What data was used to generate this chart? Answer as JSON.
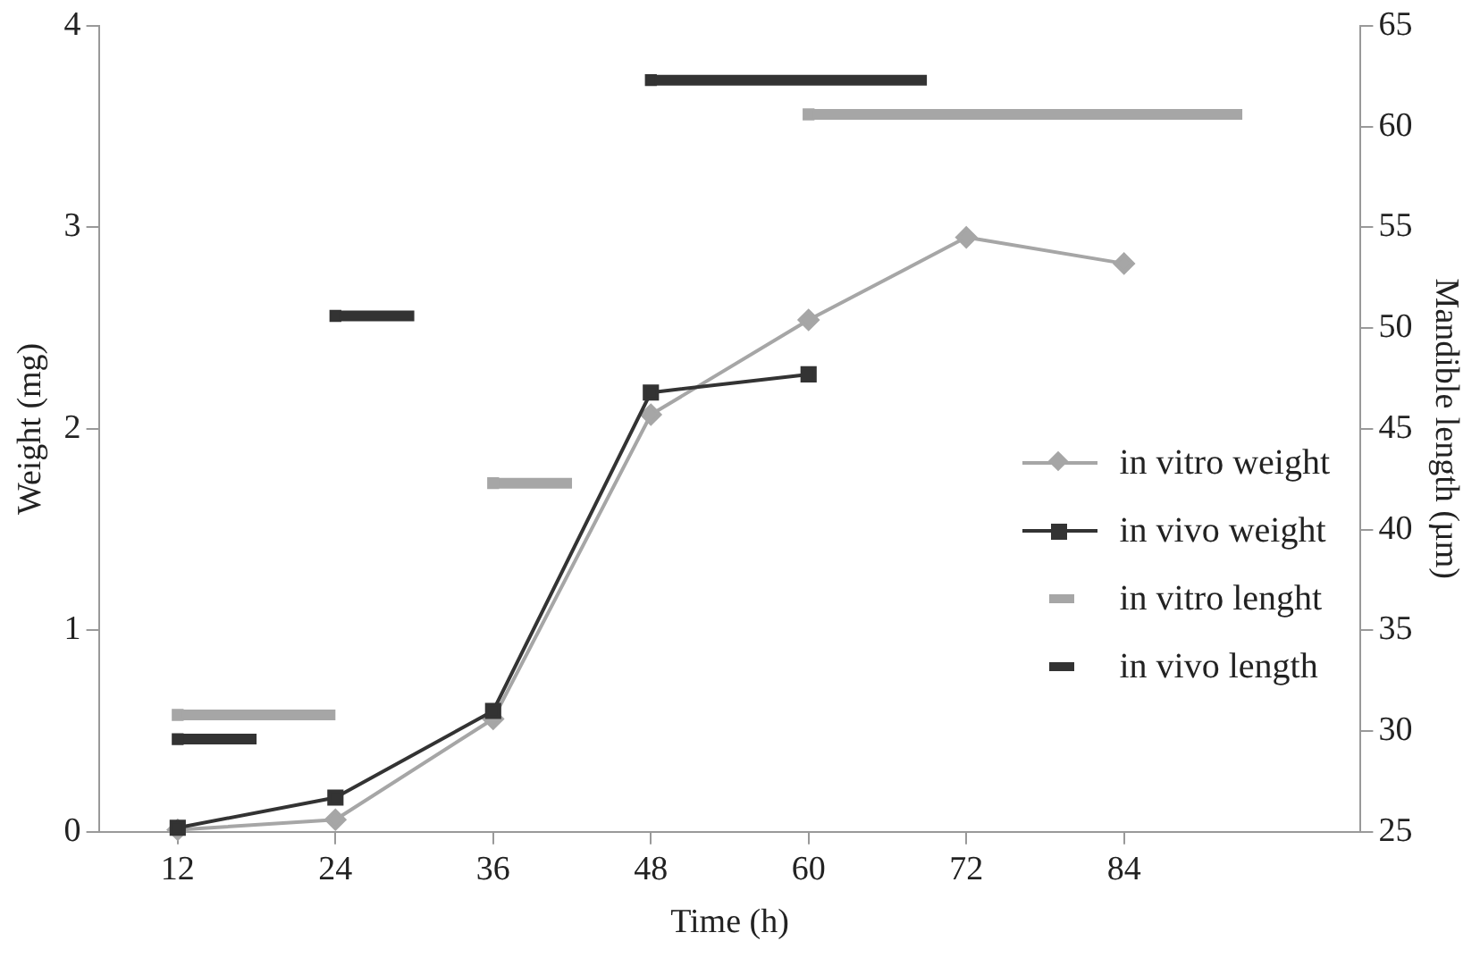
{
  "chart_data": {
    "type": "line",
    "xlabel": "Time (h)",
    "ylabel": "Weight (mg)",
    "y2label": "Mandible length (µm)",
    "xlim": [
      6,
      102
    ],
    "xticks": [
      12,
      24,
      36,
      48,
      60,
      72,
      84
    ],
    "ylim": [
      0,
      4
    ],
    "yticks": [
      0,
      1,
      2,
      3,
      4
    ],
    "y2lim": [
      25,
      65
    ],
    "y2ticks": [
      25,
      30,
      35,
      40,
      45,
      50,
      55,
      60,
      65
    ],
    "grid": false,
    "legend": "right",
    "series": [
      {
        "name": "in vitro weight",
        "type": "line",
        "color": "#a6a6a6",
        "marker": "diamond",
        "x": [
          12,
          24,
          36,
          48,
          60,
          72,
          84
        ],
        "values": [
          0.01,
          0.06,
          0.56,
          2.07,
          2.54,
          2.95,
          2.82
        ]
      },
      {
        "name": "in vivo weight",
        "type": "line",
        "color": "#333333",
        "marker": "square",
        "x": [
          12,
          24,
          36,
          48,
          60
        ],
        "values": [
          0.02,
          0.17,
          0.6,
          2.18,
          2.27
        ]
      },
      {
        "name": "in vitro lenght",
        "type": "scatter",
        "axis": "y2",
        "color": "#a6a6a6",
        "marker": "square",
        "x": [
          12,
          36,
          60
        ],
        "values": [
          30.8,
          42.3,
          60.6
        ],
        "xerrors": [
          [
            12,
            24
          ],
          [
            36,
            42
          ],
          [
            60,
            93
          ]
        ]
      },
      {
        "name": "in vivo length",
        "type": "scatter",
        "axis": "y2",
        "color": "#333333",
        "marker": "square",
        "x": [
          12,
          24,
          48
        ],
        "values": [
          29.6,
          50.6,
          62.3
        ],
        "xerrors": [
          [
            12,
            18
          ],
          [
            24,
            30
          ],
          [
            48,
            69
          ]
        ]
      }
    ]
  }
}
